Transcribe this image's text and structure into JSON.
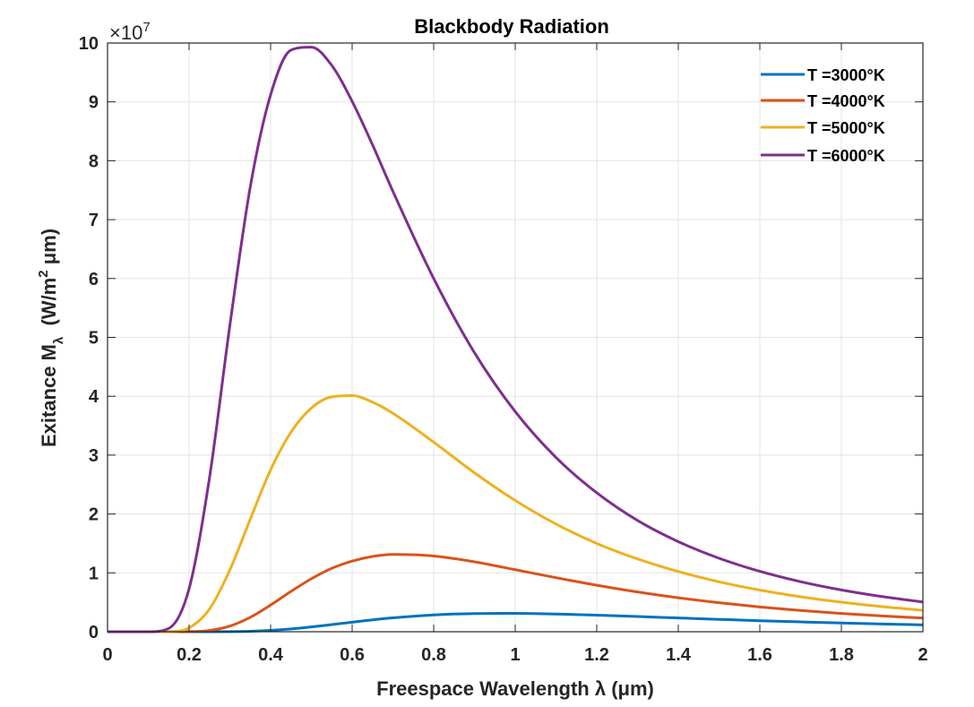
{
  "chart_data": {
    "type": "line",
    "title": "Blackbody Radiation",
    "xlabel": "Freespace Wavelength λ (μm)",
    "ylabel": {
      "main": "Exitance M",
      "sub": "λ",
      "mid": "  (W/m",
      "sup": "2",
      "end": " μm)"
    },
    "y_multiplier": {
      "base": "×10",
      "exp": "7"
    },
    "xlim": [
      0,
      2
    ],
    "ylim": [
      0,
      10
    ],
    "xticks": [
      "0",
      "0.2",
      "0.4",
      "0.6",
      "0.8",
      "1",
      "1.2",
      "1.4",
      "1.6",
      "1.8",
      "2"
    ],
    "yticks": [
      "0",
      "1",
      "2",
      "3",
      "4",
      "5",
      "6",
      "7",
      "8",
      "9",
      "10"
    ],
    "grid": true,
    "legend_position": "top-right",
    "x": [
      0,
      0.1,
      0.15,
      0.2,
      0.25,
      0.3,
      0.35,
      0.4,
      0.45,
      0.5,
      0.55,
      0.6,
      0.65,
      0.7,
      0.8,
      0.9,
      1.0,
      1.1,
      1.2,
      1.3,
      1.4,
      1.5,
      1.6,
      1.7,
      1.8,
      1.9,
      2.0
    ],
    "series": [
      {
        "name": "T =3000°K",
        "color": "#0072BD",
        "values": [
          0,
          0,
          0,
          0,
          0,
          0.002,
          0.008,
          0.023,
          0.048,
          0.082,
          0.121,
          0.162,
          0.202,
          0.236,
          0.285,
          0.309,
          0.312,
          0.301,
          0.282,
          0.258,
          0.234,
          0.21,
          0.187,
          0.167,
          0.148,
          0.132,
          0.117
        ]
      },
      {
        "name": "T =4000°K",
        "color": "#D95319",
        "values": [
          0,
          0,
          0,
          0.002,
          0.022,
          0.096,
          0.245,
          0.454,
          0.685,
          0.9,
          1.076,
          1.2,
          1.279,
          1.313,
          1.287,
          1.187,
          1.054,
          0.918,
          0.79,
          0.676,
          0.577,
          0.493,
          0.421,
          0.361,
          0.311,
          0.268,
          0.232
        ]
      },
      {
        "name": "T =5000°K",
        "color": "#EDB120",
        "values": [
          0,
          0,
          0.002,
          0.066,
          0.384,
          1.05,
          1.91,
          2.75,
          3.39,
          3.8,
          3.99,
          4.01,
          3.9,
          3.71,
          3.22,
          2.7,
          2.23,
          1.83,
          1.5,
          1.237,
          1.022,
          0.848,
          0.708,
          0.594,
          0.502,
          0.426,
          0.364
        ]
      },
      {
        "name": "T =6000°K",
        "color": "#7E2F8E",
        "values": [
          0,
          0,
          0.056,
          0.73,
          2.61,
          5.2,
          7.55,
          9.12,
          9.88,
          9.93,
          9.62,
          9.01,
          8.27,
          7.48,
          6.0,
          4.74,
          3.74,
          2.96,
          2.36,
          1.89,
          1.53,
          1.248,
          1.026,
          0.85,
          0.71,
          0.597,
          0.505
        ]
      }
    ]
  }
}
